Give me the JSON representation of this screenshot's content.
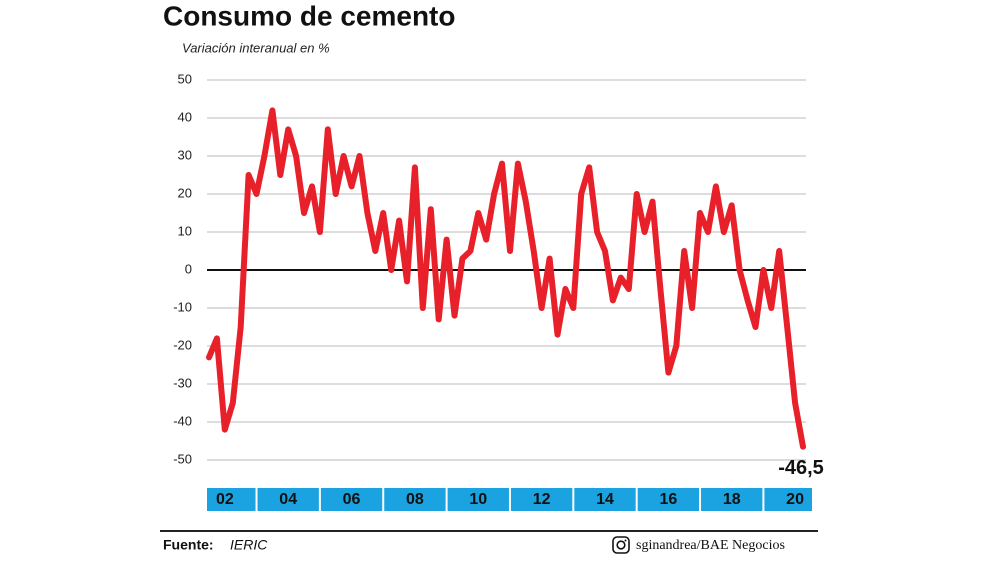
{
  "chart_data": {
    "type": "line",
    "title": "Consumo de cemento",
    "subtitle": "Variación interanual en %",
    "categories": [
      null,
      null,
      "02",
      null,
      null,
      null,
      null,
      null,
      null,
      null,
      "04",
      null,
      null,
      null,
      null,
      null,
      null,
      null,
      "06",
      null,
      null,
      null,
      null,
      null,
      null,
      null,
      "08",
      null,
      null,
      null,
      null,
      null,
      null,
      null,
      "10",
      null,
      null,
      null,
      null,
      null,
      null,
      null,
      "12",
      null,
      null,
      null,
      null,
      null,
      null,
      null,
      "14",
      null,
      null,
      null,
      null,
      null,
      null,
      null,
      "16",
      null,
      null,
      null,
      null,
      null,
      null,
      null,
      "18",
      null,
      null,
      null,
      null,
      null,
      null,
      null,
      "20",
      null
    ],
    "values": [
      -23,
      -18,
      -42,
      -35,
      -15,
      25,
      20,
      30,
      42,
      25,
      37,
      30,
      15,
      22,
      10,
      37,
      20,
      30,
      22,
      30,
      15,
      5,
      15,
      0,
      13,
      -3,
      27,
      -10,
      16,
      -13,
      8,
      -12,
      3,
      5,
      15,
      8,
      20,
      28,
      5,
      28,
      18,
      5,
      -10,
      3,
      -17,
      -5,
      -10,
      20,
      27,
      10,
      5,
      -8,
      -2,
      -5,
      20,
      10,
      18,
      -5,
      -27,
      -20,
      5,
      -10,
      15,
      10,
      22,
      10,
      17,
      0,
      -8,
      -15,
      0,
      -10,
      5,
      -15,
      -35,
      -46.5
    ],
    "value_labels": [
      null,
      null,
      null,
      null,
      null,
      null,
      null,
      null,
      null,
      null,
      null,
      null,
      null,
      null,
      null,
      null,
      null,
      null,
      null,
      null,
      null,
      null,
      null,
      null,
      null,
      null,
      null,
      null,
      null,
      null,
      null,
      null,
      null,
      null,
      null,
      null,
      null,
      null,
      null,
      null,
      null,
      null,
      null,
      null,
      null,
      null,
      null,
      null,
      null,
      null,
      null,
      null,
      null,
      null,
      null,
      null,
      null,
      null,
      null,
      null,
      null,
      null,
      null,
      null,
      null,
      null,
      null,
      null,
      null,
      null,
      null,
      null,
      null,
      null,
      null,
      "-46,5"
    ],
    "color": "#e8202a",
    "ylim": [
      -50,
      50
    ],
    "yticks": [
      -50,
      -40,
      -30,
      -20,
      -10,
      0,
      10,
      20,
      30,
      40,
      50
    ],
    "grid": true,
    "source_label": "Fuente:",
    "source": "IERIC",
    "credit": "sginandrea/BAE Negocios"
  }
}
